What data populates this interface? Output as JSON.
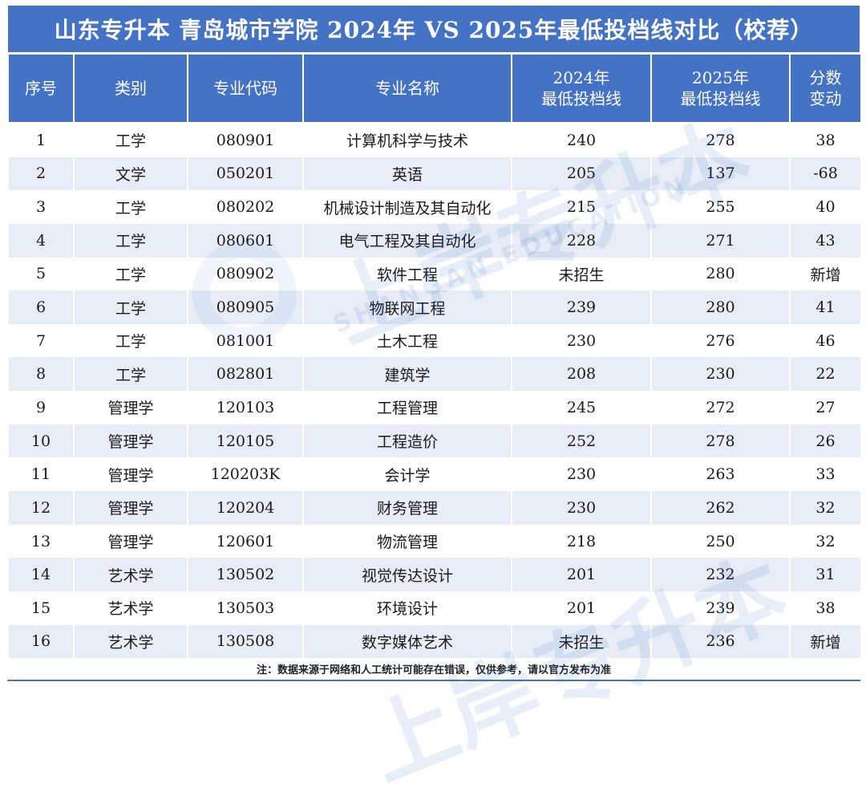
{
  "title": "山东专升本 青岛城市学院 2024年 VS 2025年最低投档线对比（校荐）",
  "headers": {
    "index": "序号",
    "category": "类别",
    "code": "专业代码",
    "name": "专业名称",
    "line2024_a": "2024年",
    "line2024_b": "最低投档线",
    "line2025_a": "2025年",
    "line2025_b": "最低投档线",
    "change_a": "分数",
    "change_b": "变动"
  },
  "rows": [
    {
      "index": "1",
      "category": "工学",
      "code": "080901",
      "name": "计算机科学与技术",
      "y2024": "240",
      "y2025": "278",
      "change": "38"
    },
    {
      "index": "2",
      "category": "文学",
      "code": "050201",
      "name": "英语",
      "y2024": "205",
      "y2025": "137",
      "change": "-68"
    },
    {
      "index": "3",
      "category": "工学",
      "code": "080202",
      "name": "机械设计制造及其自动化",
      "y2024": "215",
      "y2025": "255",
      "change": "40"
    },
    {
      "index": "4",
      "category": "工学",
      "code": "080601",
      "name": "电气工程及其自动化",
      "y2024": "228",
      "y2025": "271",
      "change": "43"
    },
    {
      "index": "5",
      "category": "工学",
      "code": "080902",
      "name": "软件工程",
      "y2024": "未招生",
      "y2025": "280",
      "change": "新增"
    },
    {
      "index": "6",
      "category": "工学",
      "code": "080905",
      "name": "物联网工程",
      "y2024": "239",
      "y2025": "280",
      "change": "41"
    },
    {
      "index": "7",
      "category": "工学",
      "code": "081001",
      "name": "土木工程",
      "y2024": "230",
      "y2025": "276",
      "change": "46"
    },
    {
      "index": "8",
      "category": "工学",
      "code": "082801",
      "name": "建筑学",
      "y2024": "208",
      "y2025": "230",
      "change": "22"
    },
    {
      "index": "9",
      "category": "管理学",
      "code": "120103",
      "name": "工程管理",
      "y2024": "245",
      "y2025": "272",
      "change": "27"
    },
    {
      "index": "10",
      "category": "管理学",
      "code": "120105",
      "name": "工程造价",
      "y2024": "252",
      "y2025": "278",
      "change": "26"
    },
    {
      "index": "11",
      "category": "管理学",
      "code": "120203K",
      "name": "会计学",
      "y2024": "230",
      "y2025": "263",
      "change": "33"
    },
    {
      "index": "12",
      "category": "管理学",
      "code": "120204",
      "name": "财务管理",
      "y2024": "230",
      "y2025": "262",
      "change": "32"
    },
    {
      "index": "13",
      "category": "管理学",
      "code": "120601",
      "name": "物流管理",
      "y2024": "218",
      "y2025": "250",
      "change": "32"
    },
    {
      "index": "14",
      "category": "艺术学",
      "code": "130502",
      "name": "视觉传达设计",
      "y2024": "201",
      "y2025": "232",
      "change": "31"
    },
    {
      "index": "15",
      "category": "艺术学",
      "code": "130503",
      "name": "环境设计",
      "y2024": "201",
      "y2025": "239",
      "change": "38"
    },
    {
      "index": "16",
      "category": "艺术学",
      "code": "130508",
      "name": "数字媒体艺术",
      "y2024": "未招生",
      "y2025": "236",
      "change": "新增"
    }
  ],
  "note": "注：数据来源于网络和人工统计可能存在错误，仅供参考，请以官方发布为准",
  "watermark": {
    "brand": "上岸专升本",
    "brand_latin": "SHANGAN EDUCATION"
  }
}
